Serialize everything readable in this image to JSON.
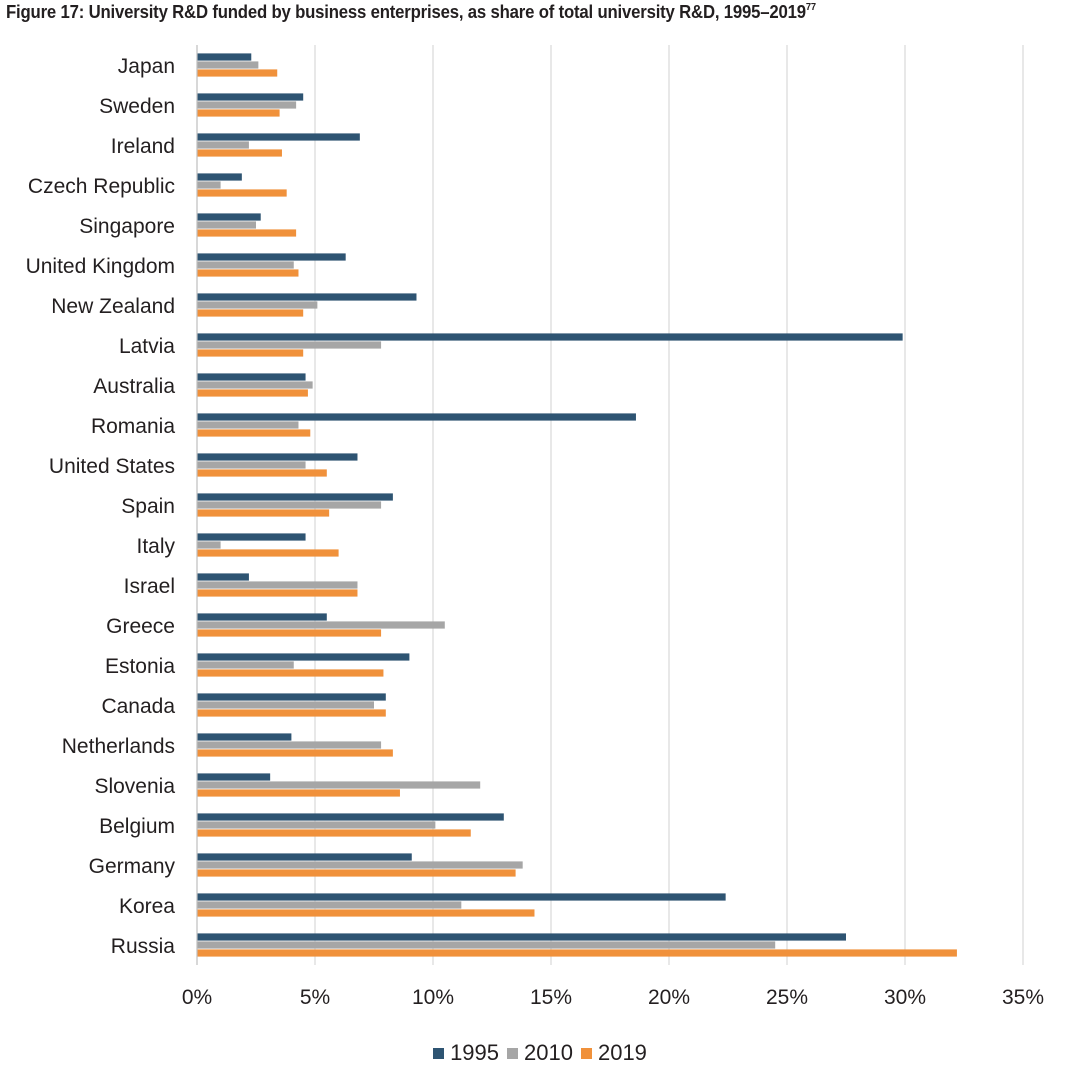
{
  "title_main": "Figure 17: University R&D funded by business enterprises, as share of total university R&D, 1995–2019",
  "title_footnote": "77",
  "chart_data": {
    "type": "bar",
    "orientation": "horizontal",
    "title": "Figure 17: University R&D funded by business enterprises, as share of total university R&D, 1995–2019",
    "categories": [
      "Japan",
      "Sweden",
      "Ireland",
      "Czech Republic",
      "Singapore",
      "United Kingdom",
      "New Zealand",
      "Latvia",
      "Australia",
      "Romania",
      "United States",
      "Spain",
      "Italy",
      "Israel",
      "Greece",
      "Estonia",
      "Canada",
      "Netherlands",
      "Slovenia",
      "Belgium",
      "Germany",
      "Korea",
      "Russia"
    ],
    "series": [
      {
        "name": "1995",
        "color": "#2e5472",
        "values": [
          2.3,
          4.5,
          6.9,
          1.9,
          2.7,
          6.3,
          9.3,
          29.9,
          4.6,
          18.6,
          6.8,
          8.3,
          4.6,
          2.2,
          5.5,
          9.0,
          8.0,
          4.0,
          3.1,
          13.0,
          9.1,
          22.4,
          27.5
        ]
      },
      {
        "name": "2010",
        "color": "#a6a6a6",
        "values": [
          2.6,
          4.2,
          2.2,
          1.0,
          2.5,
          4.1,
          5.1,
          7.8,
          4.9,
          4.3,
          4.6,
          7.8,
          1.0,
          6.8,
          10.5,
          4.1,
          7.5,
          7.8,
          12.0,
          10.1,
          13.8,
          11.2,
          24.5
        ]
      },
      {
        "name": "2019",
        "color": "#f0913b",
        "values": [
          3.4,
          3.5,
          3.6,
          3.8,
          4.2,
          4.3,
          4.5,
          4.5,
          4.7,
          4.8,
          5.5,
          5.6,
          6.0,
          6.8,
          7.8,
          7.9,
          8.0,
          8.3,
          8.6,
          11.6,
          13.5,
          14.3,
          32.2
        ]
      }
    ],
    "xlim": [
      0,
      35
    ],
    "x_ticks": [
      "0%",
      "5%",
      "10%",
      "15%",
      "20%",
      "25%",
      "30%",
      "35%"
    ],
    "xlabel": "",
    "ylabel": "",
    "grid": "vertical",
    "legend_position": "bottom"
  }
}
